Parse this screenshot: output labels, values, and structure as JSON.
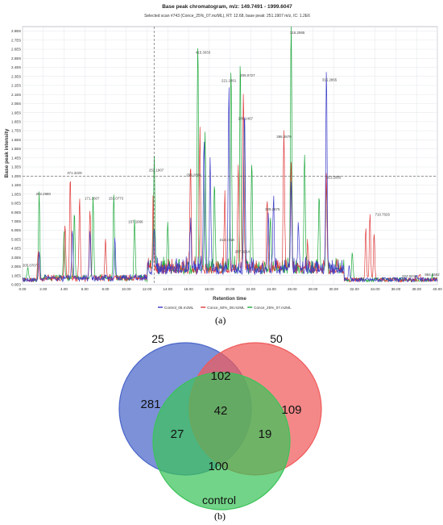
{
  "figure": {
    "panel_a_label": "(a)",
    "panel_b_label": "(b)"
  },
  "chart_data": [
    {
      "type": "line",
      "title": "Base peak chromatogram, m/z: 149.7491 - 1999.6047",
      "subtitle": "Selected scan #743 (Conce_25%_07.mzML), RT: 12.68, base peak: 251.1907 m/z, IC: 1.2E6",
      "xlabel": "Retention time",
      "ylabel": "Base peak intensity",
      "xlim": [
        0,
        40
      ],
      "ylim": [
        0,
        2.85
      ],
      "grid": true,
      "legend_position": "bottom",
      "x_ticks": [
        "0.00",
        "2.00",
        "4.00",
        "6.00",
        "8.00",
        "10.00",
        "12.00",
        "14.00",
        "16.00",
        "18.00",
        "20.00",
        "22.00",
        "24.00",
        "26.00",
        "28.00",
        "30.00",
        "32.00",
        "34.00",
        "36.00",
        "38.00",
        "40.00"
      ],
      "y_ticks": [
        "0.0E0",
        "1.0E5",
        "2.0E5",
        "3.0E5",
        "4.0E5",
        "5.0E5",
        "6.0E5",
        "7.0E5",
        "8.0E5",
        "9.0E5",
        "1.0E6",
        "1.1E6",
        "1.2E6",
        "1.3E6",
        "1.4E6",
        "1.5E6",
        "1.6E6",
        "1.7E6",
        "1.8E6",
        "1.9E6",
        "2.0E6",
        "2.1E6",
        "2.2E6",
        "2.3E6",
        "2.4E6",
        "2.5E6",
        "2.6E6",
        "2.7E6",
        "2.8E6"
      ],
      "crosshair": {
        "x": 12.68,
        "y": 1.2
      },
      "colors": {
        "Control_06.mzML": "#3b3bc8",
        "Conce_50%_08.mzML": "#e03a3a",
        "Conce_25%_07.mzML": "#1faa3c"
      },
      "series": [
        {
          "name": "Control_06.mzML",
          "peaks": [
            [
              1.6,
              0.3
            ],
            [
              4.8,
              0.55
            ],
            [
              6.5,
              0.5
            ],
            [
              8.9,
              0.45
            ],
            [
              12.7,
              0.5
            ],
            [
              16.2,
              0.5
            ],
            [
              17.5,
              1.45
            ],
            [
              18.1,
              1.15
            ],
            [
              19.9,
              2.0
            ],
            [
              21.4,
              1.8
            ],
            [
              23.7,
              0.6
            ],
            [
              24.2,
              0.8
            ],
            [
              25.9,
              0.9
            ],
            [
              26.6,
              0.5
            ],
            [
              29.3,
              2.22
            ],
            [
              31.5,
              0.15
            ],
            [
              38.0,
              0.05
            ]
          ]
        },
        {
          "name": "Conce_50%_08.mzML",
          "peaks": [
            [
              1.5,
              0.3
            ],
            [
              4.1,
              0.62
            ],
            [
              4.6,
              1.13
            ],
            [
              5.5,
              0.85
            ],
            [
              6.5,
              0.75
            ],
            [
              8.0,
              0.45
            ],
            [
              12.6,
              0.7
            ],
            [
              16.2,
              1.17
            ],
            [
              17.1,
              1.5
            ],
            [
              19.5,
              0.8
            ],
            [
              20.8,
              1.2
            ],
            [
              21.3,
              1.95
            ],
            [
              23.6,
              0.78
            ],
            [
              25.2,
              1.57
            ],
            [
              25.9,
              1.1
            ],
            [
              27.5,
              0.3
            ],
            [
              29.3,
              0.98
            ],
            [
              33.1,
              0.57
            ],
            [
              33.5,
              0.72
            ],
            [
              33.9,
              0.5
            ],
            [
              38.3,
              0.06
            ]
          ]
        },
        {
          "name": "Conce_25%_07.mzML",
          "peaks": [
            [
              0.5,
              0.16
            ],
            [
              1.6,
              0.95
            ],
            [
              4.0,
              0.5
            ],
            [
              5.0,
              0.72
            ],
            [
              6.8,
              0.9
            ],
            [
              8.8,
              0.9
            ],
            [
              10.8,
              0.65
            ],
            [
              12.7,
              1.2
            ],
            [
              14.0,
              0.55
            ],
            [
              16.9,
              2.52
            ],
            [
              17.6,
              1.55
            ],
            [
              18.5,
              0.95
            ],
            [
              20.1,
              2.2
            ],
            [
              21.0,
              2.28
            ],
            [
              21.4,
              1.72
            ],
            [
              22.1,
              1.15
            ],
            [
              23.9,
              0.55
            ],
            [
              25.9,
              2.75
            ],
            [
              27.2,
              1.3
            ],
            [
              28.6,
              0.82
            ],
            [
              29.3,
              0.95
            ],
            [
              31.8,
              0.3
            ],
            [
              39.5,
              0.05
            ]
          ]
        }
      ],
      "annotations": [
        {
          "text": "205.0707",
          "x": 0.7,
          "y": 0.2
        },
        {
          "text": "202.2980",
          "x": 2.0,
          "y": 0.99
        },
        {
          "text": "371.3229",
          "x": 5.0,
          "y": 1.22
        },
        {
          "text": "171.1607",
          "x": 6.7,
          "y": 0.94
        },
        {
          "text": "153.0773",
          "x": 9.0,
          "y": 0.94
        },
        {
          "text": "157.1666",
          "x": 10.9,
          "y": 0.68
        },
        {
          "text": "251.1907",
          "x": 12.9,
          "y": 1.25
        },
        {
          "text": "299.2894",
          "x": 16.5,
          "y": 1.2
        },
        {
          "text": "415.3033",
          "x": 17.4,
          "y": 2.55
        },
        {
          "text": "221.1801",
          "x": 19.9,
          "y": 2.24
        },
        {
          "text": "205.0727",
          "x": 21.7,
          "y": 2.3
        },
        {
          "text": "205.1467",
          "x": 21.5,
          "y": 1.82
        },
        {
          "text": "213.1718",
          "x": 19.7,
          "y": 0.48
        },
        {
          "text": "287.3214",
          "x": 21.2,
          "y": 0.35
        },
        {
          "text": "329.2675",
          "x": 24.1,
          "y": 0.82
        },
        {
          "text": "398.2879",
          "x": 25.2,
          "y": 1.62
        },
        {
          "text": "315.2865",
          "x": 26.5,
          "y": 2.77
        },
        {
          "text": "315.2865",
          "x": 29.6,
          "y": 2.25
        },
        {
          "text": "313.2805",
          "x": 30.0,
          "y": 1.17
        },
        {
          "text": "710.7026",
          "x": 34.7,
          "y": 0.76
        },
        {
          "text": "224.0448",
          "x": 37.3,
          "y": 0.08
        },
        {
          "text": "984.4662",
          "x": 39.5,
          "y": 0.1
        }
      ]
    },
    {
      "type": "venn",
      "sets": [
        {
          "label": "25",
          "color": "#4a66c9"
        },
        {
          "label": "50",
          "color": "#f05a5a"
        },
        {
          "label": "control",
          "color": "#3cc35a"
        }
      ],
      "regions": [
        {
          "sets": [
            "25"
          ],
          "value": 281
        },
        {
          "sets": [
            "50"
          ],
          "value": 109
        },
        {
          "sets": [
            "control"
          ],
          "value": 100
        },
        {
          "sets": [
            "25",
            "50"
          ],
          "value": 102
        },
        {
          "sets": [
            "25",
            "control"
          ],
          "value": 27
        },
        {
          "sets": [
            "50",
            "control"
          ],
          "value": 19
        },
        {
          "sets": [
            "25",
            "50",
            "control"
          ],
          "value": 42
        }
      ]
    }
  ]
}
